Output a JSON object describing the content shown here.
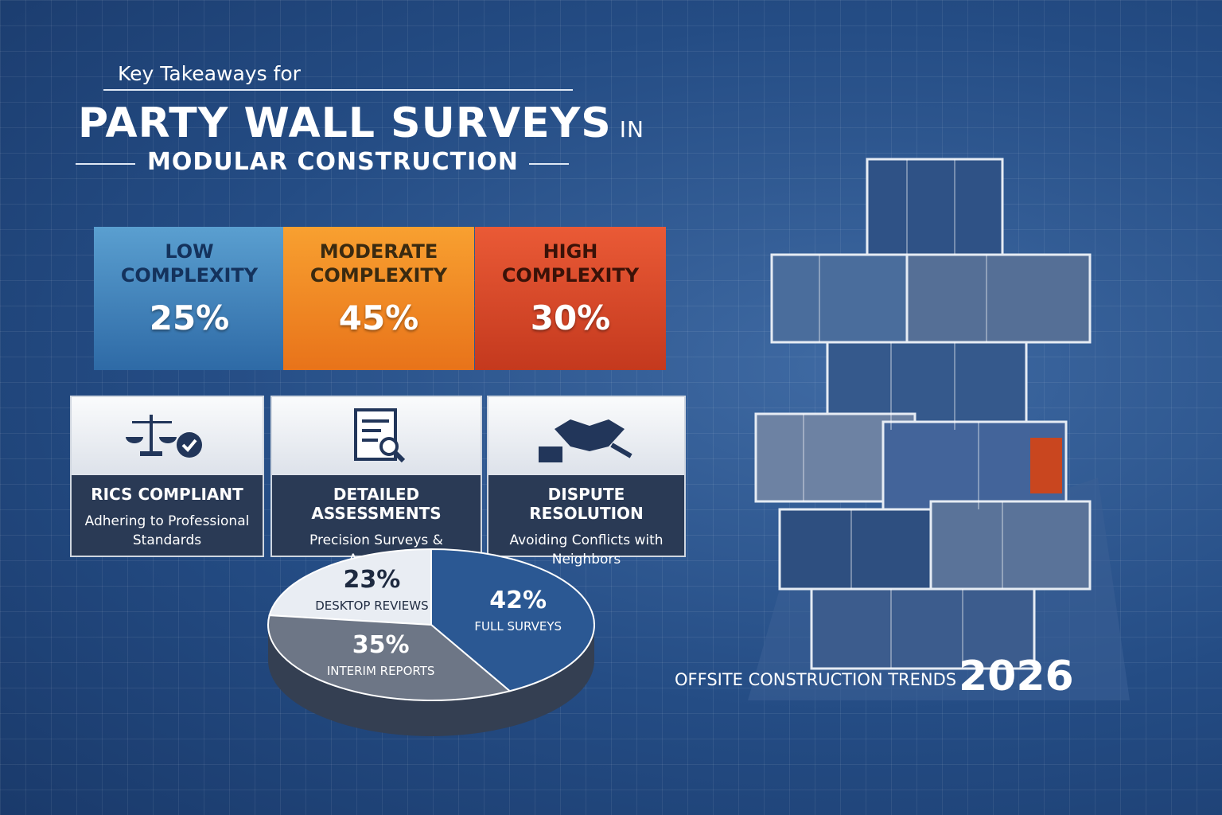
{
  "header": {
    "kicker": "Key Takeaways for",
    "title": "PARTY WALL SURVEYS",
    "title_suffix": "IN",
    "subtitle": "MODULAR CONSTRUCTION"
  },
  "complexity": [
    {
      "label": "LOW COMPLEXITY",
      "value": "25%"
    },
    {
      "label": "MODERATE COMPLEXITY",
      "value": "45%"
    },
    {
      "label": "HIGH COMPLEXITY",
      "value": "30%"
    }
  ],
  "features": [
    {
      "title": "RICS COMPLIANT",
      "text": "Adhering to Professional Standards"
    },
    {
      "title": "DETAILED ASSESSMENTS",
      "text": "Precision Surveys & Analysis"
    },
    {
      "title": "DISPUTE RESOLUTION",
      "text": "Avoiding Conflicts with Neighbors"
    }
  ],
  "chart_data": {
    "type": "pie",
    "categories": [
      "DESKTOP REVIEWS",
      "FULL SURVEYS",
      "INTERIM REPORTS"
    ],
    "values": [
      23,
      42,
      35
    ],
    "value_labels": [
      "23%",
      "42%",
      "35%"
    ],
    "colors": [
      "#e9edf3",
      "#2b5893",
      "#6d7686"
    ]
  },
  "footer": {
    "text": "OFFSITE CONSTRUCTION TRENDS",
    "year": "2026"
  }
}
